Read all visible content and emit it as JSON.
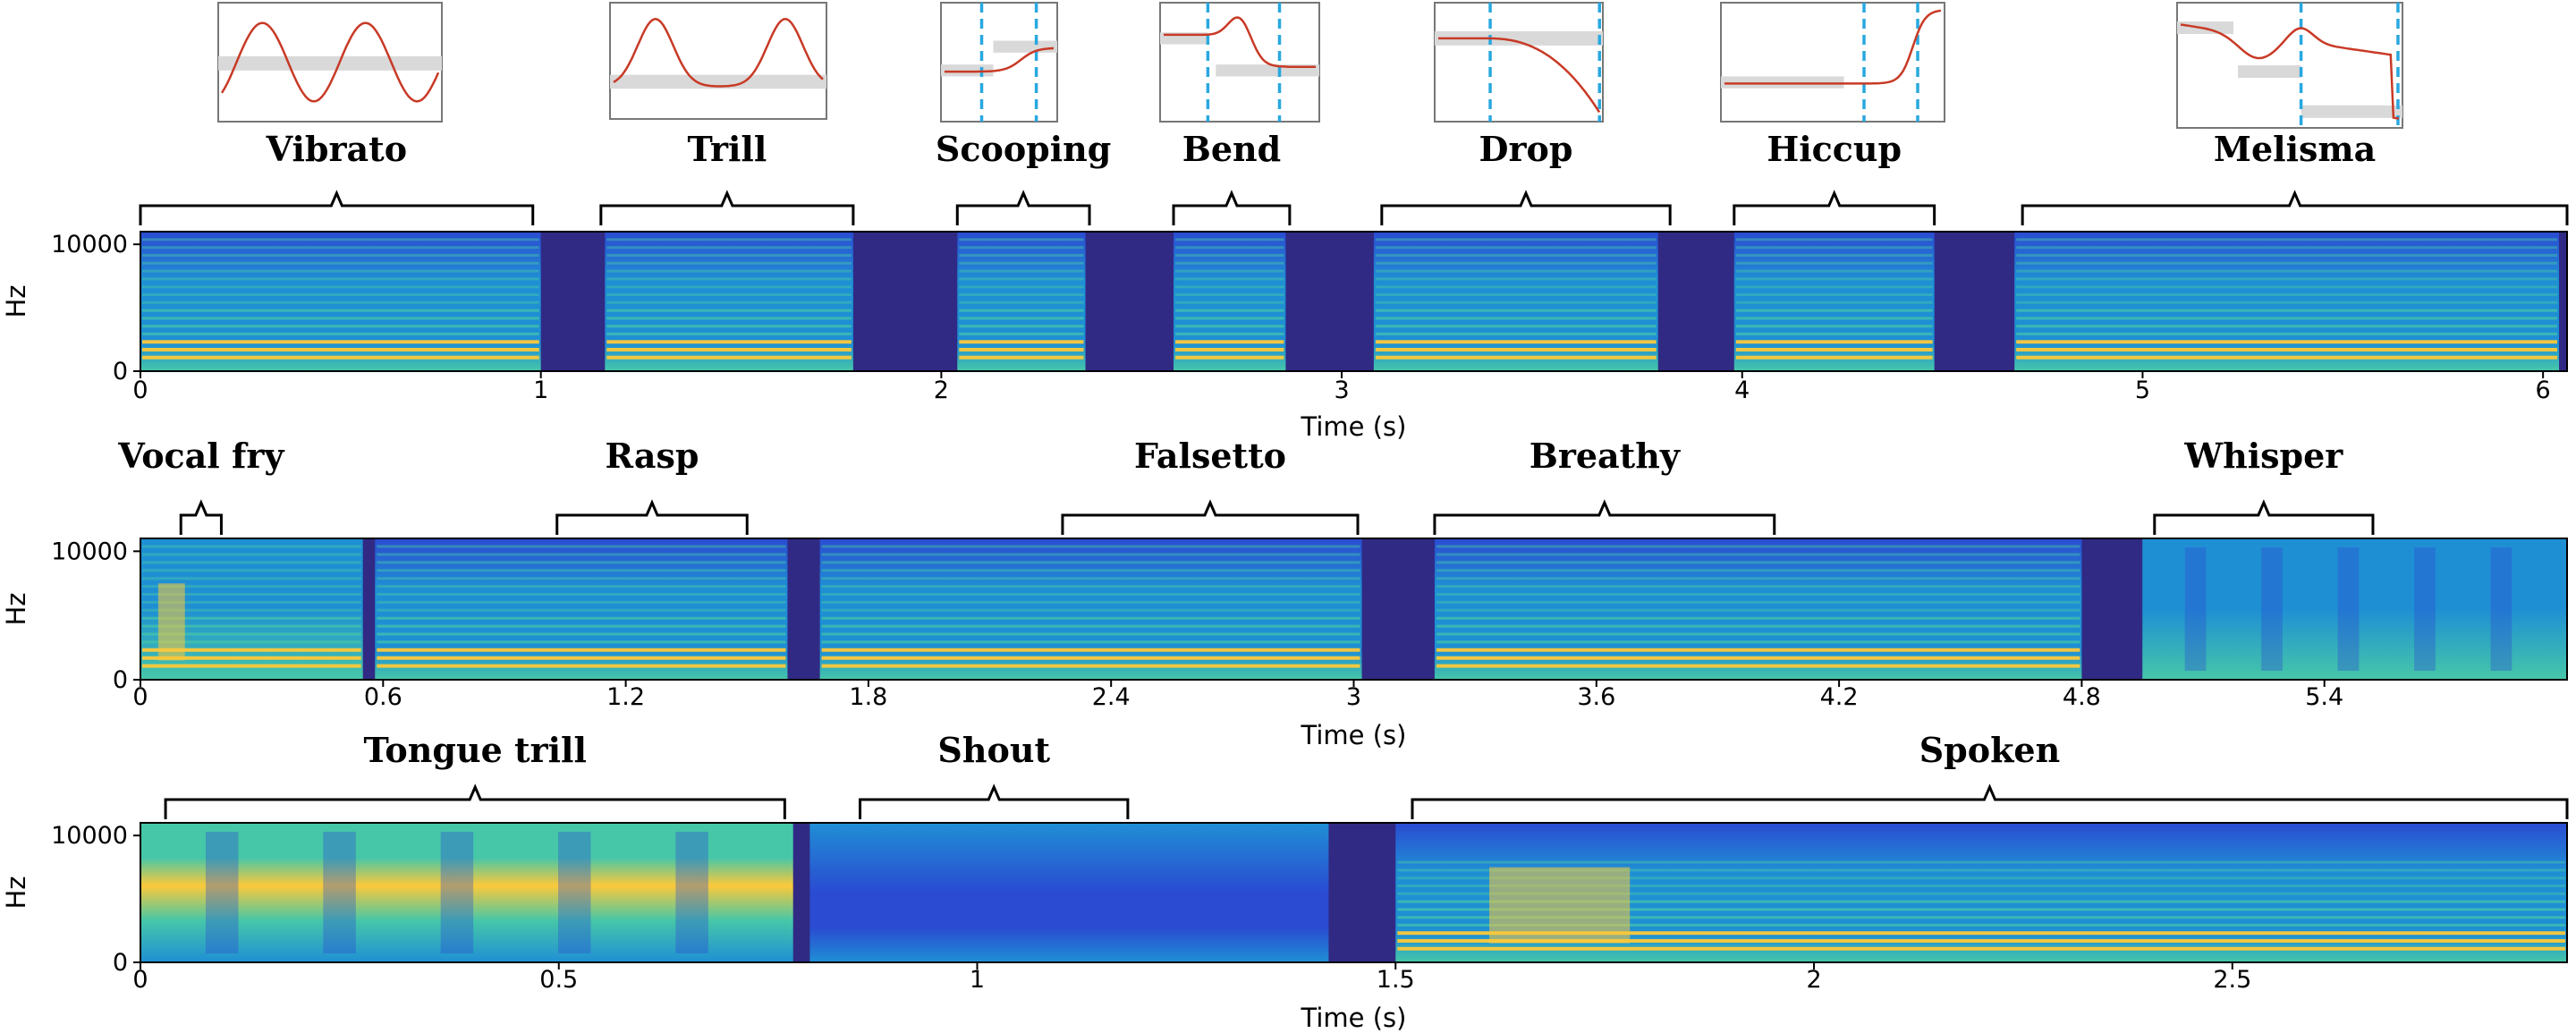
{
  "colors": {
    "silence": "#302a84",
    "stop1": "#2a4bd2",
    "stop2": "#1f8fd4",
    "stop3": "#46c7a8",
    "stop4": "#fcc93a",
    "contour": "#c83a26",
    "marker": "#29a8e0",
    "band": "#d9d9d9"
  },
  "chart_data": [
    {
      "type": "heatmap",
      "name": "row-1",
      "xlabel": "Time (s)",
      "ylabel": "Hz",
      "xlim": [
        0,
        6.06
      ],
      "ylim": [
        0,
        11000
      ],
      "xticks": [
        0,
        1,
        2,
        3,
        4,
        5,
        6
      ],
      "xtick_labels": [
        "0",
        "1",
        "2",
        "3",
        "4",
        "5",
        "6"
      ],
      "yticks": [
        0,
        10000
      ],
      "ytick_labels": [
        "0",
        "10000"
      ],
      "segments": [
        {
          "label": "Vibrato",
          "start": 0.0,
          "end": 1.0,
          "bracket": [
            0.0,
            0.98
          ],
          "contour": "vibrato",
          "style": "harmonic"
        },
        {
          "label": "Trill",
          "start": 1.16,
          "end": 1.78,
          "bracket": [
            1.15,
            1.78
          ],
          "contour": "trill",
          "style": "harmonic"
        },
        {
          "label": "Scooping",
          "start": 2.04,
          "end": 2.36,
          "bracket": [
            2.04,
            2.37
          ],
          "contour": "scooping",
          "style": "harmonic"
        },
        {
          "label": "Bend",
          "start": 2.58,
          "end": 2.86,
          "bracket": [
            2.58,
            2.87
          ],
          "contour": "bend",
          "style": "harmonic"
        },
        {
          "label": "Drop",
          "start": 3.08,
          "end": 3.79,
          "bracket": [
            3.1,
            3.82
          ],
          "contour": "drop",
          "style": "harmonic"
        },
        {
          "label": "Hiccup",
          "start": 3.98,
          "end": 4.48,
          "bracket": [
            3.98,
            4.48
          ],
          "contour": "hiccup",
          "style": "harmonic"
        },
        {
          "label": "Melisma",
          "start": 4.68,
          "end": 6.04,
          "bracket": [
            4.7,
            6.06
          ],
          "contour": "melisma",
          "style": "harmonic"
        }
      ]
    },
    {
      "type": "heatmap",
      "name": "row-2",
      "xlabel": "Time (s)",
      "ylabel": "Hz",
      "xlim": [
        0,
        6.0
      ],
      "ylim": [
        0,
        11000
      ],
      "xticks": [
        0,
        0.6,
        1.2,
        1.8,
        2.4,
        3.0,
        3.6,
        4.2,
        4.8,
        5.4
      ],
      "xtick_labels": [
        "0",
        "0.6",
        "1.2",
        "1.8",
        "2.4",
        "3",
        "3.6",
        "4.2",
        "4.8",
        "5.4"
      ],
      "yticks": [
        0,
        10000
      ],
      "ytick_labels": [
        "0",
        "10000"
      ],
      "segments": [
        {
          "label": "Vocal fry",
          "start": 0.0,
          "end": 0.55,
          "bracket": [
            0.1,
            0.2
          ],
          "style": "fry"
        },
        {
          "label": "Rasp",
          "start": 0.58,
          "end": 1.6,
          "bracket": [
            1.03,
            1.5
          ],
          "style": "harmonic"
        },
        {
          "label": "Falsetto",
          "start": 1.68,
          "end": 3.02,
          "bracket": [
            2.28,
            3.01
          ],
          "style": "harmonic"
        },
        {
          "label": "Breathy",
          "start": 3.2,
          "end": 4.8,
          "bracket": [
            3.2,
            4.04
          ],
          "style": "breathy"
        },
        {
          "label": "Whisper",
          "start": 4.95,
          "end": 6.0,
          "bracket": [
            4.98,
            5.52
          ],
          "style": "noise"
        }
      ]
    },
    {
      "type": "heatmap",
      "name": "row-3",
      "xlabel": "Time (s)",
      "ylabel": "Hz",
      "xlim": [
        0,
        2.9
      ],
      "ylim": [
        0,
        11000
      ],
      "xticks": [
        0,
        0.5,
        1,
        1.5,
        2,
        2.5
      ],
      "xtick_labels": [
        "0",
        "0.5",
        "1",
        "1.5",
        "2",
        "2.5"
      ],
      "yticks": [
        0,
        10000
      ],
      "ytick_labels": [
        "0",
        "10000"
      ],
      "segments": [
        {
          "label": "Tongue trill",
          "start": 0.0,
          "end": 0.78,
          "bracket": [
            0.03,
            0.77
          ],
          "style": "noise-bright"
        },
        {
          "label": "Shout",
          "start": 0.8,
          "end": 1.42,
          "bracket": [
            0.86,
            1.18
          ],
          "style": "noise-dark"
        },
        {
          "label": "Spoken",
          "start": 1.5,
          "end": 2.9,
          "bracket": [
            1.52,
            2.9
          ],
          "style": "speech"
        }
      ]
    }
  ]
}
